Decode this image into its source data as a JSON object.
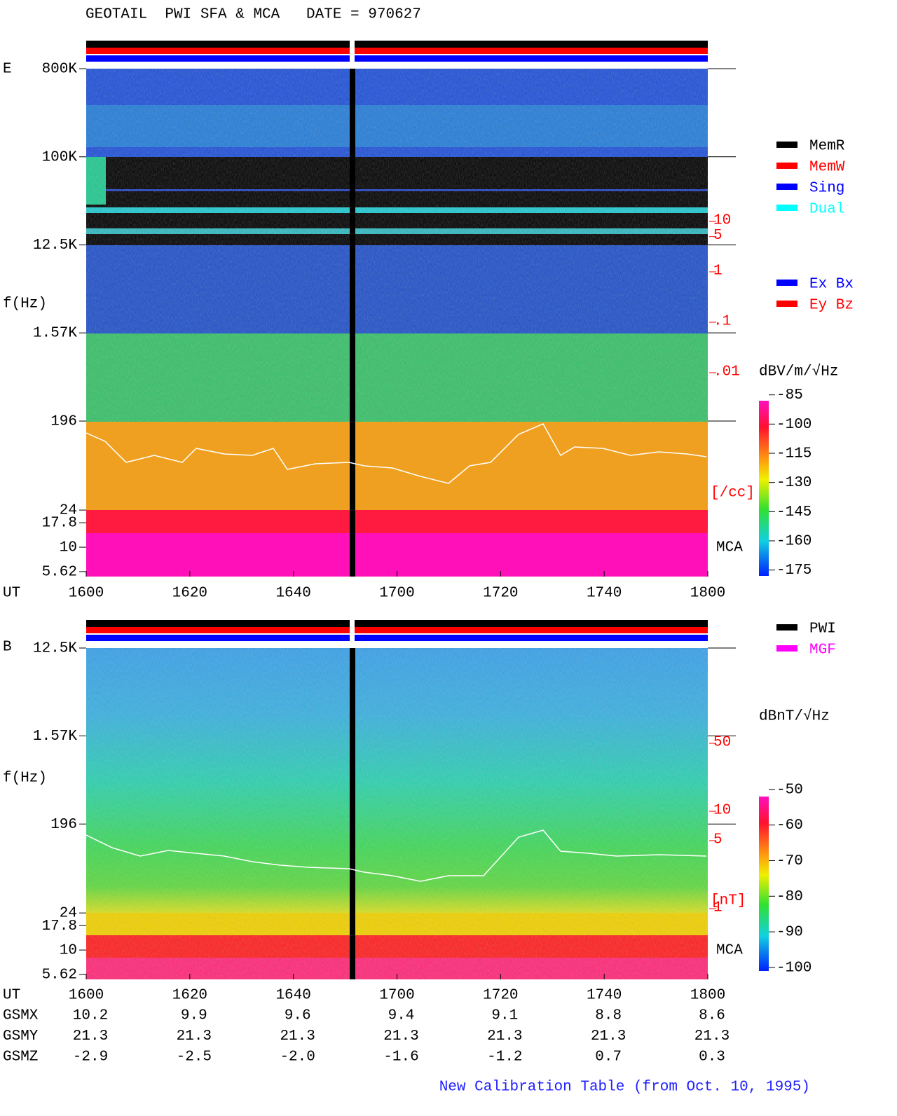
{
  "chart_data": [
    {
      "type": "spectrogram",
      "title": "GEOTAIL  PWI SFA & MCA   DATE = 970627",
      "label": "E",
      "ylabel": "f(Hz)",
      "xlabel": "UT",
      "yscale": "log",
      "ylim": [
        5,
        800000
      ],
      "yticks": [
        {
          "value": 800000,
          "label": "800K"
        },
        {
          "value": 100000,
          "label": "100K"
        },
        {
          "value": 12500,
          "label": "12.5K"
        },
        {
          "value": 1570,
          "label": "1.57K"
        },
        196,
        24,
        17.8,
        10,
        5.62
      ],
      "xlim": [
        960,
        1080
      ],
      "xticks": [
        {
          "value": 960,
          "label": "1600"
        },
        {
          "value": 980,
          "label": "1620"
        },
        {
          "value": 1000,
          "label": "1640"
        },
        {
          "value": 1020,
          "label": "1700"
        },
        {
          "value": 1040,
          "label": "1720"
        },
        {
          "value": 1060,
          "label": "1740"
        },
        {
          "value": 1080,
          "label": "1800"
        }
      ],
      "mca_label": "MCA",
      "y2lim": [
        0.01,
        10
      ],
      "y2ticks": [
        10,
        5,
        1,
        {
          "value": 0.1,
          "label": ".1"
        },
        {
          "value": 0.01,
          "label": ".01"
        }
      ],
      "y2label": "[/cc]",
      "colorbar": {
        "label": "dBV/m/√Hz",
        "lim": [
          -178,
          -88
        ],
        "ticks": [
          -85,
          -100,
          -115,
          -130,
          -145,
          -160,
          -175
        ]
      },
      "legends": [
        [
          {
            "name": "MemR",
            "color": "#000000"
          },
          {
            "name": "MemW",
            "color": "#ff0000"
          },
          {
            "name": "Sing",
            "color": "#0000ff"
          },
          {
            "name": "Dual",
            "color": "#00ffff"
          }
        ],
        [
          {
            "name": "Ex Bx",
            "color": "#0000ff"
          },
          {
            "name": "Ey Bz",
            "color": "#ff0000"
          }
        ]
      ]
    },
    {
      "type": "spectrogram",
      "label": "B",
      "ylabel": "f(Hz)",
      "xlabel": "UT",
      "yscale": "log",
      "ylim": [
        5,
        12500
      ],
      "yticks": [
        {
          "value": 12500,
          "label": "12.5K"
        },
        {
          "value": 1570,
          "label": "1.57K"
        },
        196,
        24,
        17.8,
        10,
        5.62
      ],
      "xlim": [
        960,
        1080
      ],
      "xticks": [
        {
          "value": 960,
          "label": "1600"
        },
        {
          "value": 980,
          "label": "1620"
        },
        {
          "value": 1000,
          "label": "1640"
        },
        {
          "value": 1020,
          "label": "1700"
        },
        {
          "value": 1040,
          "label": "1720"
        },
        {
          "value": 1060,
          "label": "1740"
        },
        {
          "value": 1080,
          "label": "1800"
        }
      ],
      "mca_label": "MCA",
      "y2lim": [
        1,
        50
      ],
      "y2ticks": [
        50,
        10,
        5,
        1
      ],
      "y2label": "[nT]",
      "colorbar": {
        "label": "dBnT/√Hz",
        "lim": [
          -101,
          -52
        ],
        "ticks": [
          -50,
          -60,
          -70,
          -80,
          -90,
          -100
        ]
      },
      "legends": [
        [
          {
            "name": "PWI",
            "color": "#000000"
          },
          {
            "name": "MGF",
            "color": "#ff00ff"
          }
        ]
      ],
      "ephemeris": [
        {
          "name": "GSMX",
          "values": [
            "10.2",
            "9.9",
            "9.6",
            "9.4",
            "9.1",
            "8.8",
            "8.6"
          ]
        },
        {
          "name": "GSMY",
          "values": [
            "21.3",
            "21.3",
            "21.3",
            "21.3",
            "21.3",
            "21.3",
            "21.3"
          ]
        },
        {
          "name": "GSMZ",
          "values": [
            "-2.9",
            "-2.5",
            "-2.0",
            "-1.6",
            "-1.2",
            "0.7",
            "0.3"
          ]
        }
      ],
      "footnote": "New Calibration Table (from Oct. 10, 1995)"
    }
  ]
}
